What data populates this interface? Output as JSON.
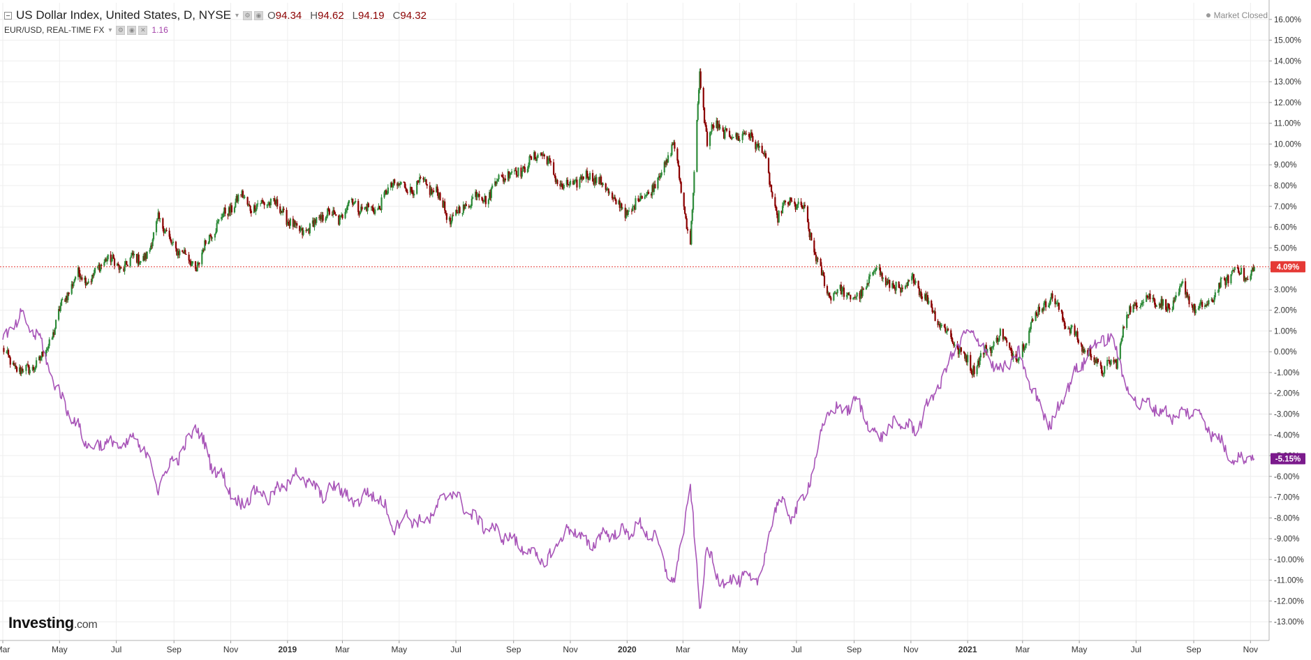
{
  "header": {
    "instrument_title": "US Dollar Index, United States, D, NYSE",
    "ohlc": [
      {
        "key": "O",
        "value": "94.34"
      },
      {
        "key": "H",
        "value": "94.62"
      },
      {
        "key": "L",
        "value": "94.19"
      },
      {
        "key": "C",
        "value": "94.32"
      }
    ],
    "comparison_title": "EUR/USD, REAL-TIME FX",
    "comparison_value": "1.16"
  },
  "status": {
    "market": "Market Closed"
  },
  "brand": {
    "name": "Investing",
    "suffix": ".com"
  },
  "colors": {
    "up_candle": "#2e8b3a",
    "down_candle": "#8b0000",
    "eurusd_line": "#a855b8",
    "current_price_line": "#e53935",
    "eurusd_badge": "#7b1a8c",
    "grid": "#eeeeee"
  },
  "icons": [
    "collapse-icon",
    "caret-down-icon",
    "settings-icon",
    "visibility-icon",
    "close-icon"
  ],
  "chart_data": {
    "type": "line",
    "title": "US Dollar Index, United States, D, NYSE",
    "y_unit": "%",
    "ylim": [
      -13.9,
      16.8
    ],
    "y_ticks": [
      16,
      15,
      14,
      13,
      12,
      11,
      10,
      9,
      8,
      7,
      6,
      5,
      4,
      3,
      2,
      1,
      0,
      -1,
      -2,
      -3,
      -4,
      -5,
      -6,
      -7,
      -8,
      -9,
      -10,
      -11,
      -12,
      -13
    ],
    "y_tick_labels": [
      "16.00%",
      "15.00%",
      "14.00%",
      "13.00%",
      "12.00%",
      "11.00%",
      "10.00%",
      "9.00%",
      "8.00%",
      "7.00%",
      "6.00%",
      "5.00%",
      "4.00%",
      "3.00%",
      "2.00%",
      "1.00%",
      "0.00%",
      "-1.00%",
      "-2.00%",
      "-3.00%",
      "-4.00%",
      "-5.00%",
      "-6.00%",
      "-7.00%",
      "-8.00%",
      "-9.00%",
      "-10.00%",
      "-11.00%",
      "-12.00%",
      "-13.00%"
    ],
    "x_tick_labels": [
      {
        "label": "Mar",
        "date": "2018-03"
      },
      {
        "label": "May",
        "date": "2018-05"
      },
      {
        "label": "Jul",
        "date": "2018-07"
      },
      {
        "label": "Sep",
        "date": "2018-09"
      },
      {
        "label": "Nov",
        "date": "2018-11"
      },
      {
        "label": "2019",
        "date": "2019-01",
        "year": true
      },
      {
        "label": "Mar",
        "date": "2019-03"
      },
      {
        "label": "May",
        "date": "2019-05"
      },
      {
        "label": "Jul",
        "date": "2019-07"
      },
      {
        "label": "Sep",
        "date": "2019-09"
      },
      {
        "label": "Nov",
        "date": "2019-11"
      },
      {
        "label": "2020",
        "date": "2020-01",
        "year": true
      },
      {
        "label": "Mar",
        "date": "2020-03"
      },
      {
        "label": "May",
        "date": "2020-05"
      },
      {
        "label": "Jul",
        "date": "2020-07"
      },
      {
        "label": "Sep",
        "date": "2020-09"
      },
      {
        "label": "Nov",
        "date": "2020-11"
      },
      {
        "label": "2021",
        "date": "2021-01",
        "year": true
      },
      {
        "label": "Mar",
        "date": "2021-03"
      },
      {
        "label": "May",
        "date": "2021-05"
      },
      {
        "label": "Jul",
        "date": "2021-07"
      },
      {
        "label": "Sep",
        "date": "2021-09"
      },
      {
        "label": "Nov",
        "date": "2021-11"
      }
    ],
    "grid": true,
    "legend_position": "top-left",
    "current_values": [
      {
        "label": "4.09%",
        "value": 4.09
      },
      {
        "label": "-5.15%",
        "value": -5.15
      }
    ],
    "series": [
      {
        "name": "US Dollar Index, United States, D, NYSE",
        "style": "candlestick",
        "points": [
          {
            "date": "2018-03-01",
            "value": 0.0
          },
          {
            "date": "2018-03-20",
            "value": -1.0
          },
          {
            "date": "2018-04-10",
            "value": -0.5
          },
          {
            "date": "2018-04-25",
            "value": 1.0
          },
          {
            "date": "2018-05-05",
            "value": 2.5
          },
          {
            "date": "2018-05-20",
            "value": 3.7
          },
          {
            "date": "2018-06-05",
            "value": 3.5
          },
          {
            "date": "2018-06-20",
            "value": 4.6
          },
          {
            "date": "2018-07-05",
            "value": 4.0
          },
          {
            "date": "2018-07-20",
            "value": 4.5
          },
          {
            "date": "2018-08-05",
            "value": 4.6
          },
          {
            "date": "2018-08-15",
            "value": 6.6
          },
          {
            "date": "2018-08-28",
            "value": 5.2
          },
          {
            "date": "2018-09-10",
            "value": 4.8
          },
          {
            "date": "2018-09-25",
            "value": 4.0
          },
          {
            "date": "2018-10-10",
            "value": 5.7
          },
          {
            "date": "2018-10-25",
            "value": 6.6
          },
          {
            "date": "2018-11-12",
            "value": 7.5
          },
          {
            "date": "2018-11-25",
            "value": 6.9
          },
          {
            "date": "2018-12-12",
            "value": 7.3
          },
          {
            "date": "2018-12-28",
            "value": 6.7
          },
          {
            "date": "2019-01-10",
            "value": 5.8
          },
          {
            "date": "2019-01-25",
            "value": 5.9
          },
          {
            "date": "2019-02-10",
            "value": 6.7
          },
          {
            "date": "2019-02-25",
            "value": 6.4
          },
          {
            "date": "2019-03-10",
            "value": 7.3
          },
          {
            "date": "2019-03-25",
            "value": 6.8
          },
          {
            "date": "2019-04-10",
            "value": 7.0
          },
          {
            "date": "2019-04-25",
            "value": 8.2
          },
          {
            "date": "2019-05-10",
            "value": 7.8
          },
          {
            "date": "2019-05-25",
            "value": 8.1
          },
          {
            "date": "2019-06-10",
            "value": 7.7
          },
          {
            "date": "2019-06-25",
            "value": 6.3
          },
          {
            "date": "2019-07-10",
            "value": 7.0
          },
          {
            "date": "2019-07-25",
            "value": 7.6
          },
          {
            "date": "2019-08-05",
            "value": 7.4
          },
          {
            "date": "2019-08-15",
            "value": 8.4
          },
          {
            "date": "2019-08-30",
            "value": 8.6
          },
          {
            "date": "2019-09-15",
            "value": 8.9
          },
          {
            "date": "2019-09-30",
            "value": 9.7
          },
          {
            "date": "2019-10-10",
            "value": 8.9
          },
          {
            "date": "2019-10-25",
            "value": 7.8
          },
          {
            "date": "2019-11-10",
            "value": 8.3
          },
          {
            "date": "2019-11-25",
            "value": 8.5
          },
          {
            "date": "2019-12-10",
            "value": 7.8
          },
          {
            "date": "2019-12-31",
            "value": 6.6
          },
          {
            "date": "2020-01-15",
            "value": 7.4
          },
          {
            "date": "2020-01-31",
            "value": 8.0
          },
          {
            "date": "2020-02-20",
            "value": 10.0
          },
          {
            "date": "2020-03-09",
            "value": 5.2
          },
          {
            "date": "2020-03-19",
            "value": 13.4
          },
          {
            "date": "2020-03-27",
            "value": 10.1
          },
          {
            "date": "2020-04-05",
            "value": 11.0
          },
          {
            "date": "2020-04-20",
            "value": 10.3
          },
          {
            "date": "2020-05-05",
            "value": 10.5
          },
          {
            "date": "2020-05-15",
            "value": 10.2
          },
          {
            "date": "2020-05-25",
            "value": 9.8
          },
          {
            "date": "2020-06-10",
            "value": 6.5
          },
          {
            "date": "2020-06-25",
            "value": 7.3
          },
          {
            "date": "2020-07-10",
            "value": 6.7
          },
          {
            "date": "2020-07-25",
            "value": 4.0
          },
          {
            "date": "2020-08-05",
            "value": 2.8
          },
          {
            "date": "2020-08-20",
            "value": 2.9
          },
          {
            "date": "2020-09-05",
            "value": 2.5
          },
          {
            "date": "2020-09-25",
            "value": 4.1
          },
          {
            "date": "2020-10-10",
            "value": 3.1
          },
          {
            "date": "2020-10-25",
            "value": 3.0
          },
          {
            "date": "2020-11-05",
            "value": 3.5
          },
          {
            "date": "2020-11-20",
            "value": 2.3
          },
          {
            "date": "2020-12-05",
            "value": 1.2
          },
          {
            "date": "2020-12-20",
            "value": 0.3
          },
          {
            "date": "2021-01-06",
            "value": -0.8
          },
          {
            "date": "2021-01-20",
            "value": 0.0
          },
          {
            "date": "2021-02-05",
            "value": 0.8
          },
          {
            "date": "2021-02-25",
            "value": -0.4
          },
          {
            "date": "2021-03-10",
            "value": 1.4
          },
          {
            "date": "2021-03-31",
            "value": 2.7
          },
          {
            "date": "2021-04-15",
            "value": 1.5
          },
          {
            "date": "2021-04-30",
            "value": 0.5
          },
          {
            "date": "2021-05-15",
            "value": -0.3
          },
          {
            "date": "2021-05-25",
            "value": -0.8
          },
          {
            "date": "2021-06-10",
            "value": -0.5
          },
          {
            "date": "2021-06-20",
            "value": 1.7
          },
          {
            "date": "2021-07-05",
            "value": 2.5
          },
          {
            "date": "2021-07-20",
            "value": 2.6
          },
          {
            "date": "2021-08-05",
            "value": 2.0
          },
          {
            "date": "2021-08-20",
            "value": 3.1
          },
          {
            "date": "2021-09-05",
            "value": 1.9
          },
          {
            "date": "2021-09-20",
            "value": 2.5
          },
          {
            "date": "2021-10-05",
            "value": 3.5
          },
          {
            "date": "2021-10-15",
            "value": 4.0
          },
          {
            "date": "2021-10-30",
            "value": 3.5
          },
          {
            "date": "2021-11-05",
            "value": 4.09
          }
        ]
      },
      {
        "name": "EUR/USD, REAL-TIME FX",
        "style": "line",
        "points": [
          {
            "date": "2018-03-01",
            "value": 0.5
          },
          {
            "date": "2018-03-20",
            "value": 1.7
          },
          {
            "date": "2018-04-10",
            "value": 0.6
          },
          {
            "date": "2018-04-25",
            "value": -1.5
          },
          {
            "date": "2018-05-10",
            "value": -2.8
          },
          {
            "date": "2018-05-25",
            "value": -4.0
          },
          {
            "date": "2018-06-05",
            "value": -4.7
          },
          {
            "date": "2018-06-20",
            "value": -4.3
          },
          {
            "date": "2018-07-05",
            "value": -4.6
          },
          {
            "date": "2018-07-20",
            "value": -4.2
          },
          {
            "date": "2018-08-05",
            "value": -5.0
          },
          {
            "date": "2018-08-15",
            "value": -6.6
          },
          {
            "date": "2018-08-30",
            "value": -5.2
          },
          {
            "date": "2018-09-10",
            "value": -4.9
          },
          {
            "date": "2018-09-25",
            "value": -3.5
          },
          {
            "date": "2018-10-10",
            "value": -5.3
          },
          {
            "date": "2018-10-25",
            "value": -6.2
          },
          {
            "date": "2018-11-12",
            "value": -7.5
          },
          {
            "date": "2018-11-25",
            "value": -6.7
          },
          {
            "date": "2018-12-12",
            "value": -7.0
          },
          {
            "date": "2018-12-28",
            "value": -6.5
          },
          {
            "date": "2019-01-10",
            "value": -5.8
          },
          {
            "date": "2019-01-25",
            "value": -6.4
          },
          {
            "date": "2019-02-10",
            "value": -6.9
          },
          {
            "date": "2019-02-25",
            "value": -6.4
          },
          {
            "date": "2019-03-10",
            "value": -7.3
          },
          {
            "date": "2019-03-25",
            "value": -6.9
          },
          {
            "date": "2019-04-10",
            "value": -7.0
          },
          {
            "date": "2019-04-25",
            "value": -8.4
          },
          {
            "date": "2019-05-10",
            "value": -7.9
          },
          {
            "date": "2019-05-25",
            "value": -8.3
          },
          {
            "date": "2019-06-10",
            "value": -7.6
          },
          {
            "date": "2019-06-25",
            "value": -6.6
          },
          {
            "date": "2019-07-10",
            "value": -7.5
          },
          {
            "date": "2019-07-25",
            "value": -8.2
          },
          {
            "date": "2019-08-10",
            "value": -8.6
          },
          {
            "date": "2019-08-25",
            "value": -8.9
          },
          {
            "date": "2019-09-10",
            "value": -9.4
          },
          {
            "date": "2019-09-25",
            "value": -9.8
          },
          {
            "date": "2019-10-05",
            "value": -10.3
          },
          {
            "date": "2019-10-20",
            "value": -9.0
          },
          {
            "date": "2019-11-05",
            "value": -8.5
          },
          {
            "date": "2019-11-20",
            "value": -9.4
          },
          {
            "date": "2019-12-05",
            "value": -8.8
          },
          {
            "date": "2019-12-31",
            "value": -8.7
          },
          {
            "date": "2020-01-15",
            "value": -8.4
          },
          {
            "date": "2020-01-31",
            "value": -9.0
          },
          {
            "date": "2020-02-20",
            "value": -11.3
          },
          {
            "date": "2020-03-09",
            "value": -6.5
          },
          {
            "date": "2020-03-19",
            "value": -12.3
          },
          {
            "date": "2020-03-27",
            "value": -9.3
          },
          {
            "date": "2020-04-05",
            "value": -10.8
          },
          {
            "date": "2020-04-20",
            "value": -11.1
          },
          {
            "date": "2020-05-05",
            "value": -10.8
          },
          {
            "date": "2020-05-15",
            "value": -11.2
          },
          {
            "date": "2020-05-25",
            "value": -10.5
          },
          {
            "date": "2020-06-10",
            "value": -7.1
          },
          {
            "date": "2020-06-25",
            "value": -7.9
          },
          {
            "date": "2020-07-10",
            "value": -7.0
          },
          {
            "date": "2020-07-25",
            "value": -4.5
          },
          {
            "date": "2020-08-05",
            "value": -2.8
          },
          {
            "date": "2020-08-20",
            "value": -2.8
          },
          {
            "date": "2020-09-05",
            "value": -2.4
          },
          {
            "date": "2020-09-25",
            "value": -4.2
          },
          {
            "date": "2020-10-10",
            "value": -3.6
          },
          {
            "date": "2020-10-25",
            "value": -3.4
          },
          {
            "date": "2020-11-05",
            "value": -3.9
          },
          {
            "date": "2020-11-20",
            "value": -2.5
          },
          {
            "date": "2020-12-05",
            "value": -1.3
          },
          {
            "date": "2020-12-20",
            "value": 0.3
          },
          {
            "date": "2021-01-06",
            "value": 1.0
          },
          {
            "date": "2021-01-20",
            "value": 0.0
          },
          {
            "date": "2021-02-05",
            "value": -1.0
          },
          {
            "date": "2021-02-25",
            "value": -0.1
          },
          {
            "date": "2021-03-10",
            "value": -1.7
          },
          {
            "date": "2021-03-31",
            "value": -3.6
          },
          {
            "date": "2021-04-15",
            "value": -2.0
          },
          {
            "date": "2021-04-30",
            "value": -0.8
          },
          {
            "date": "2021-05-15",
            "value": 0.2
          },
          {
            "date": "2021-05-25",
            "value": 0.7
          },
          {
            "date": "2021-06-10",
            "value": 0.3
          },
          {
            "date": "2021-06-20",
            "value": -1.8
          },
          {
            "date": "2021-07-05",
            "value": -2.5
          },
          {
            "date": "2021-07-20",
            "value": -2.6
          },
          {
            "date": "2021-08-05",
            "value": -3.1
          },
          {
            "date": "2021-08-20",
            "value": -3.0
          },
          {
            "date": "2021-09-05",
            "value": -2.8
          },
          {
            "date": "2021-09-20",
            "value": -3.9
          },
          {
            "date": "2021-10-05",
            "value": -4.6
          },
          {
            "date": "2021-10-15",
            "value": -5.3
          },
          {
            "date": "2021-10-30",
            "value": -4.9
          },
          {
            "date": "2021-11-05",
            "value": -5.15
          }
        ]
      }
    ]
  }
}
